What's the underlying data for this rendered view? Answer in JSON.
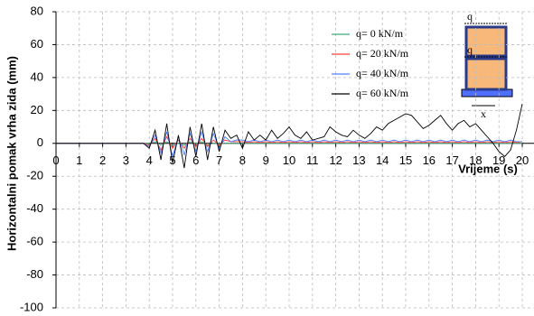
{
  "chart_data": {
    "type": "line",
    "y_label": "Horizontalni pomak vrha zida (mm)",
    "x_label": "Vrijeme (s)",
    "annotations": [
      "q",
      "q",
      "x"
    ],
    "x": [
      0,
      0.25,
      0.5,
      0.75,
      1,
      1.25,
      1.5,
      1.75,
      2,
      2.25,
      2.5,
      2.75,
      3,
      3.25,
      3.5,
      3.75,
      4,
      4.25,
      4.5,
      4.75,
      5,
      5.25,
      5.5,
      5.75,
      6,
      6.25,
      6.5,
      6.75,
      7,
      7.25,
      7.5,
      7.75,
      8,
      8.25,
      8.5,
      8.75,
      9,
      9.25,
      9.5,
      9.75,
      10,
      10.25,
      10.5,
      10.75,
      11,
      11.25,
      11.5,
      11.75,
      12,
      12.25,
      12.5,
      12.75,
      13,
      13.25,
      13.5,
      13.75,
      14,
      14.25,
      14.5,
      14.75,
      15,
      15.25,
      15.5,
      15.75,
      16,
      16.25,
      16.5,
      16.75,
      17,
      17.25,
      17.5,
      17.75,
      18,
      18.25,
      18.5,
      18.75,
      19,
      19.25,
      19.5,
      19.75,
      20
    ],
    "series": [
      {
        "name": "q= 0 kN/m",
        "color": "#3daa7a",
        "values": [
          0,
          0,
          0,
          0,
          0,
          0,
          0,
          0,
          0,
          0,
          0,
          0,
          0,
          0,
          0,
          0,
          0,
          1,
          -1,
          1,
          -1,
          0,
          -1,
          1,
          0,
          1,
          -1,
          0,
          0,
          0,
          0,
          0,
          0,
          0,
          0,
          0,
          0,
          0,
          0,
          0,
          0,
          0,
          0,
          0,
          0,
          0,
          0,
          0,
          0,
          0,
          0,
          0,
          0,
          0,
          0,
          0,
          0,
          0,
          0,
          0,
          0,
          0,
          0,
          0,
          0,
          0,
          0,
          0,
          0,
          0,
          0,
          0,
          0,
          0,
          0,
          0,
          0,
          0,
          0,
          0,
          0
        ]
      },
      {
        "name": "q= 20 kN/m",
        "color": "#ff3b3b",
        "values": [
          0,
          0,
          0,
          0,
          0,
          0,
          0,
          0,
          0,
          0,
          0,
          0,
          0,
          0,
          0,
          0,
          -1,
          3,
          -4,
          4,
          -3,
          2,
          -3,
          3,
          -2,
          3,
          -2,
          2,
          -1,
          2,
          1,
          1,
          1,
          0.5,
          1,
          0.5,
          1,
          0.5,
          1,
          0.5,
          1,
          0.5,
          1,
          0.5,
          1,
          0.5,
          1,
          0.5,
          1,
          0.5,
          1,
          0.5,
          1,
          0.5,
          1,
          0.5,
          1,
          0.5,
          1,
          0.5,
          1,
          0.5,
          1,
          0.5,
          1,
          0.5,
          1,
          0.5,
          1,
          0.5,
          1,
          0.5,
          1,
          0.5,
          1,
          0.5,
          1,
          0.5,
          1,
          0.5,
          1
        ]
      },
      {
        "name": "q= 40 kN/m",
        "color": "#4f7fff",
        "values": [
          0,
          0,
          0,
          0,
          0,
          0,
          0,
          0,
          0,
          0,
          0,
          0,
          0,
          0,
          0,
          0,
          -2,
          5,
          -6,
          7,
          -8,
          4,
          -7,
          6,
          -5,
          7,
          -5,
          6,
          -3,
          4,
          1,
          2,
          2,
          1,
          2,
          1,
          2,
          1,
          2,
          1,
          2,
          1,
          2,
          1,
          2,
          1,
          2,
          1,
          2,
          1,
          2,
          1,
          2,
          1,
          2,
          1,
          2,
          1,
          2,
          1,
          2,
          1,
          2,
          1,
          2,
          1,
          2,
          1,
          2,
          1,
          2,
          1,
          2,
          1,
          2,
          1,
          2,
          1,
          2,
          1,
          1
        ]
      },
      {
        "name": "q= 60 kN/m",
        "color": "#000000",
        "values": [
          0,
          0,
          0,
          0,
          0,
          0,
          0,
          0,
          0,
          0,
          0,
          0,
          0,
          0,
          0,
          0,
          -3,
          8,
          -10,
          12,
          -12,
          5,
          -15,
          10,
          -8,
          12,
          -10,
          10,
          -5,
          8,
          3,
          5,
          -3,
          7,
          2,
          5,
          2,
          8,
          3,
          6,
          10,
          5,
          3,
          7,
          2,
          3,
          4,
          10,
          7,
          5,
          4,
          8,
          5,
          3,
          6,
          10,
          8,
          12,
          14,
          16,
          18,
          17,
          13,
          9,
          11,
          14,
          17,
          12,
          8,
          12,
          14,
          10,
          12,
          8,
          4,
          0,
          -5,
          -8,
          -4,
          8,
          24
        ]
      }
    ],
    "xlim": [
      0,
      20
    ],
    "xticks": [
      0,
      1,
      2,
      3,
      4,
      5,
      6,
      7,
      8,
      9,
      10,
      11,
      12,
      13,
      14,
      15,
      16,
      17,
      18,
      19,
      20
    ],
    "ylim": [
      -100,
      80
    ],
    "yticks": [
      -100,
      -80,
      -60,
      -40,
      -20,
      0,
      20,
      40,
      60,
      80
    ],
    "grid": true
  }
}
